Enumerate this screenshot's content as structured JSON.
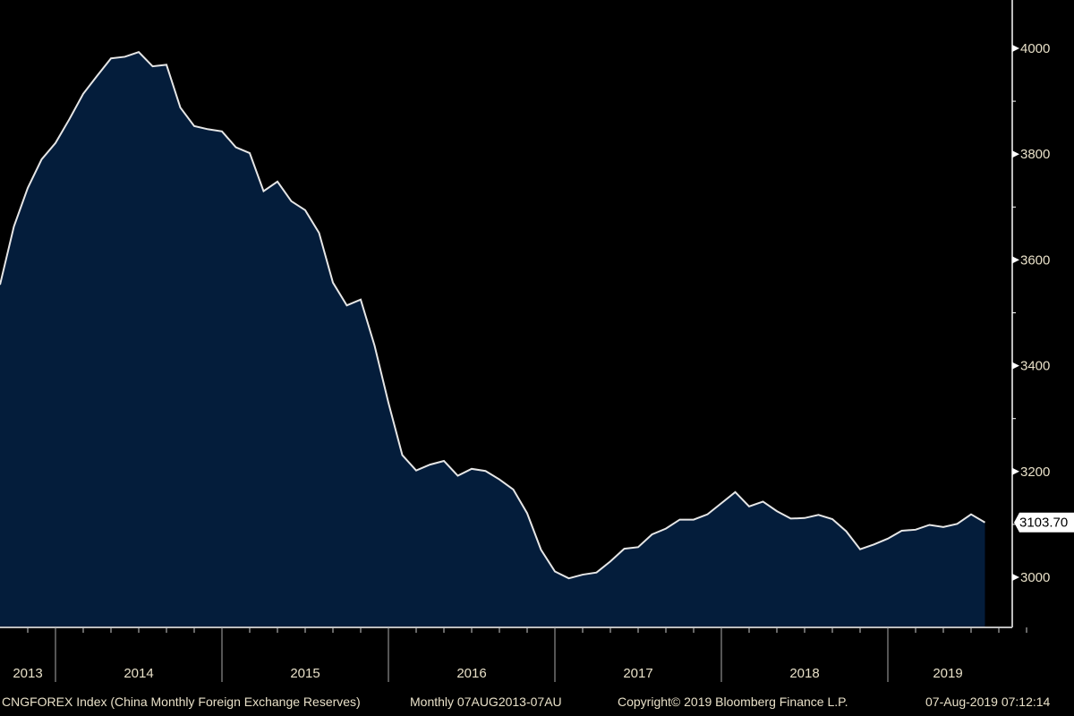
{
  "chart_data": {
    "type": "area",
    "title": "CNGFOREX Index (China Monthly Foreign Exchange Reserves)",
    "frequency": "Monthly 07AUG2013-07AU",
    "copyright": "Copyright© 2019 Bloomberg Finance L.P.",
    "timestamp": "07-Aug-2019 07:12:14",
    "x_start": "Aug 2013",
    "x_end": "Jul 2019",
    "xlabel": "",
    "ylabel": "",
    "ylim": [
      2900,
      4100
    ],
    "y_ticks": [
      "3000",
      "3200",
      "3400",
      "3600",
      "3800",
      "4000"
    ],
    "x_tick_labels": [
      "2013",
      "2014",
      "2015",
      "2016",
      "2017",
      "2018",
      "2019"
    ],
    "last_value_label": "3103.70",
    "colors": {
      "fill": "#041d3b",
      "line": "#e6e6e6",
      "axis": "#bdbdbd",
      "text": "#e8e0c8"
    },
    "values": [
      3553,
      3663,
      3736,
      3790,
      3821,
      3866,
      3914,
      3948,
      3981,
      3984,
      3993,
      3966,
      3969,
      3888,
      3853,
      3847,
      3843,
      3813,
      3802,
      3730,
      3748,
      3711,
      3694,
      3651,
      3557,
      3514,
      3525,
      3438,
      3330,
      3231,
      3202,
      3213,
      3220,
      3192,
      3205,
      3201,
      3185,
      3166,
      3121,
      3052,
      3011,
      2998,
      3005,
      3009,
      3030,
      3054,
      3057,
      3081,
      3092,
      3109,
      3109,
      3119,
      3140,
      3161,
      3134,
      3143,
      3125,
      3111,
      3112,
      3118,
      3110,
      3087,
      3053,
      3062,
      3073,
      3088,
      3090,
      3099,
      3095,
      3101,
      3119,
      3103.7
    ]
  }
}
